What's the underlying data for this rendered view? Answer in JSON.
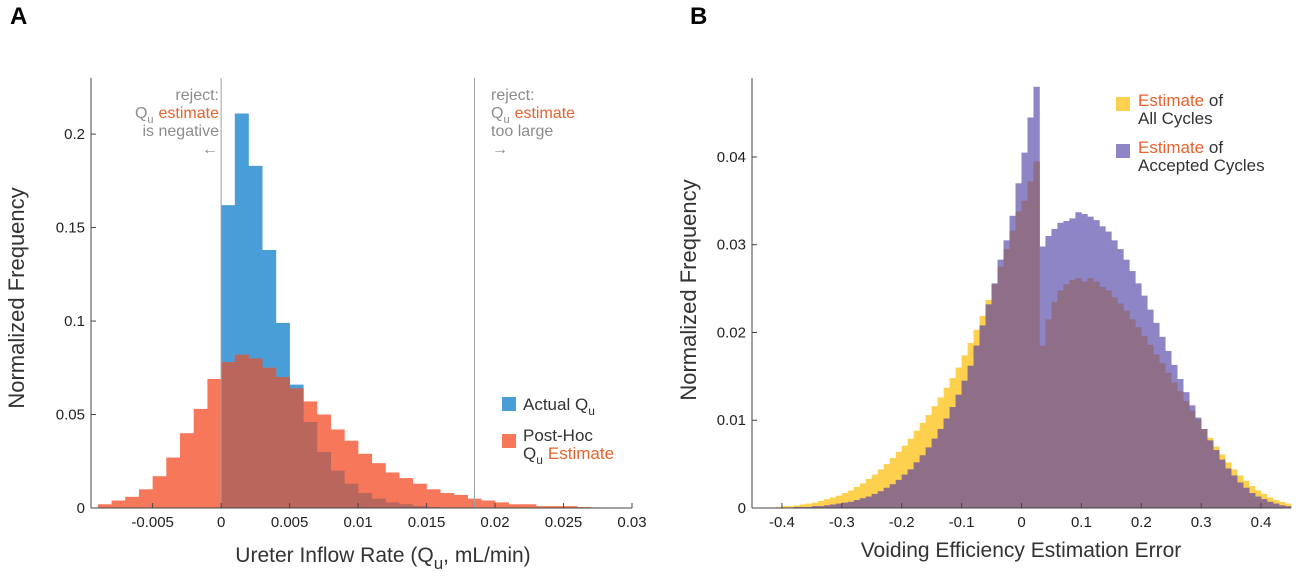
{
  "panels": [
    "A",
    "B"
  ],
  "colors": {
    "actual": "#4a9ed8",
    "posthoc": "#f7775a",
    "overlap": "#b9665c",
    "all_cycles": "#fdd04e",
    "accepted_cycles": "#8e85c6",
    "overlap_b": "#8f6f88",
    "accent_text": "#e6622f",
    "annotation_text": "#8c8c8c",
    "reject_line": "#a0a0a0"
  },
  "chart_data": [
    {
      "panel": "A",
      "type": "bar",
      "xlabel_main": "Ureter Inflow Rate (Q",
      "xlabel_sub": "u",
      "xlabel_tail": ", mL/min)",
      "ylabel": "Normalized Frequency",
      "xlim": [
        -0.0095,
        0.03
      ],
      "ylim": [
        0,
        0.23
      ],
      "xticks": [
        -0.005,
        0,
        0.005,
        0.01,
        0.015,
        0.02,
        0.025,
        0.03
      ],
      "xtick_labels": [
        "-0.005",
        "0",
        "0.005",
        "0.01",
        "0.015",
        "0.02",
        "0.025",
        "0.03"
      ],
      "yticks": [
        0,
        0.05,
        0.1,
        0.15,
        0.2
      ],
      "ytick_labels": [
        "0",
        "0.05",
        "0.1",
        "0.15",
        "0.2"
      ],
      "bin_width": 0.001,
      "series": [
        {
          "name": "Actual Q_u",
          "bin_starts": [
            0,
            0.001,
            0.002,
            0.003,
            0.004,
            0.005,
            0.006,
            0.007,
            0.008,
            0.009,
            0.01,
            0.011,
            0.012,
            0.013,
            0.014,
            0.015
          ],
          "values": [
            0.162,
            0.211,
            0.183,
            0.138,
            0.099,
            0.066,
            0.046,
            0.03,
            0.02,
            0.013,
            0.008,
            0.005,
            0.003,
            0.002,
            0.001,
            0.0005
          ]
        },
        {
          "name": "Post-Hoc Q_u Estimate",
          "bin_starts": [
            -0.009,
            -0.008,
            -0.007,
            -0.006,
            -0.005,
            -0.004,
            -0.003,
            -0.002,
            -0.001,
            0,
            0.001,
            0.002,
            0.003,
            0.004,
            0.005,
            0.006,
            0.007,
            0.008,
            0.009,
            0.01,
            0.011,
            0.012,
            0.013,
            0.014,
            0.015,
            0.016,
            0.017,
            0.018,
            0.019,
            0.02,
            0.021,
            0.022,
            0.023,
            0.024,
            0.025,
            0.026,
            0.027
          ],
          "values": [
            0.002,
            0.004,
            0.006,
            0.01,
            0.017,
            0.027,
            0.04,
            0.053,
            0.069,
            0.078,
            0.082,
            0.08,
            0.075,
            0.07,
            0.064,
            0.057,
            0.05,
            0.042,
            0.036,
            0.029,
            0.024,
            0.019,
            0.016,
            0.013,
            0.01,
            0.008,
            0.007,
            0.005,
            0.004,
            0.003,
            0.002,
            0.002,
            0.001,
            0.001,
            0.001,
            0.0005,
            0.0003
          ]
        }
      ],
      "reject_lines": [
        0,
        0.0185
      ],
      "annotations": {
        "left": {
          "line1": "reject:",
          "q": "Q",
          "q_sub": "u",
          "estimate": "estimate",
          "line3": "is negative",
          "arrow": "←"
        },
        "right": {
          "line1": "reject:",
          "q": "Q",
          "q_sub": "u",
          "estimate": "estimate",
          "line3": "too large",
          "arrow": "→"
        }
      },
      "legend": {
        "position": "lower-right",
        "actual_prefix": "Actual Q",
        "actual_sub": "u",
        "posthoc_line1": "Post-Hoc",
        "posthoc_q": "Q",
        "posthoc_sub": "u",
        "posthoc_estimate": "Estimate"
      }
    },
    {
      "panel": "B",
      "type": "bar",
      "xlabel": "Voiding Efficiency Estimation Error",
      "ylabel": "Normalized Frequency",
      "xlim": [
        -0.45,
        0.45
      ],
      "ylim": [
        0,
        0.049
      ],
      "xticks": [
        -0.4,
        -0.3,
        -0.2,
        -0.1,
        0,
        0.1,
        0.2,
        0.3,
        0.4
      ],
      "xtick_labels": [
        "-0.4",
        "-0.3",
        "-0.2",
        "-0.1",
        "0",
        "0.1",
        "0.2",
        "0.3",
        "0.4"
      ],
      "yticks": [
        0,
        0.01,
        0.02,
        0.03,
        0.04
      ],
      "ytick_labels": [
        "0",
        "0.01",
        "0.02",
        "0.03",
        "0.04"
      ],
      "bin_width": 0.01,
      "bin_start": -0.45,
      "series": [
        {
          "name": "Estimate of All Cycles",
          "values": [
            0,
            0,
            0,
            0,
            0.0001,
            0.0002,
            0.0002,
            0.0003,
            0.0004,
            0.0005,
            0.0006,
            0.0008,
            0.001,
            0.0012,
            0.0014,
            0.0017,
            0.002,
            0.0024,
            0.0028,
            0.0033,
            0.0038,
            0.0044,
            0.005,
            0.0057,
            0.0064,
            0.0071,
            0.0079,
            0.0088,
            0.0097,
            0.0106,
            0.0116,
            0.0126,
            0.0137,
            0.0148,
            0.016,
            0.0174,
            0.0188,
            0.0203,
            0.0219,
            0.0237,
            0.0255,
            0.0275,
            0.0295,
            0.0316,
            0.0338,
            0.035,
            0.0372,
            0.0395,
            0.0185,
            0.0215,
            0.0235,
            0.0248,
            0.0255,
            0.026,
            0.0262,
            0.0258,
            0.0262,
            0.0258,
            0.0252,
            0.0248,
            0.024,
            0.0233,
            0.0225,
            0.0215,
            0.0206,
            0.0196,
            0.0186,
            0.0175,
            0.0165,
            0.0154,
            0.0143,
            0.0133,
            0.0122,
            0.0111,
            0.0101,
            0.009,
            0.008,
            0.007,
            0.0061,
            0.0052,
            0.0044,
            0.0037,
            0.0031,
            0.0025,
            0.002,
            0.0016,
            0.0012,
            0.0009,
            0.0007,
            0.0005
          ]
        },
        {
          "name": "Estimate of Accepted Cycles",
          "values": [
            0,
            0,
            0,
            0,
            0,
            0,
            0,
            0.0001,
            0.0001,
            0.0001,
            0.0002,
            0.0002,
            0.0003,
            0.0004,
            0.0005,
            0.0006,
            0.0007,
            0.0009,
            0.0011,
            0.0013,
            0.0016,
            0.0019,
            0.0023,
            0.0027,
            0.0032,
            0.0038,
            0.0044,
            0.0052,
            0.006,
            0.0069,
            0.0079,
            0.009,
            0.0102,
            0.0115,
            0.0129,
            0.0145,
            0.0162,
            0.0185,
            0.0208,
            0.0232,
            0.0256,
            0.0283,
            0.0305,
            0.0333,
            0.037,
            0.0405,
            0.0445,
            0.048,
            0.0298,
            0.031,
            0.0318,
            0.0325,
            0.0327,
            0.033,
            0.0337,
            0.0335,
            0.0332,
            0.0328,
            0.0321,
            0.0315,
            0.0305,
            0.0295,
            0.0283,
            0.027,
            0.0256,
            0.0242,
            0.0226,
            0.0211,
            0.0195,
            0.0179,
            0.0163,
            0.0147,
            0.0132,
            0.0117,
            0.0103,
            0.009,
            0.0077,
            0.0066,
            0.0055,
            0.0045,
            0.0037,
            0.0029,
            0.0023,
            0.0017,
            0.0013,
            0.001,
            0.0007,
            0.0005,
            0.0003,
            0.0002
          ]
        }
      ],
      "legend": {
        "position": "top-right",
        "all_estimate": "Estimate",
        "all_of": " of",
        "all_line2": "All Cycles",
        "acc_estimate": "Estimate",
        "acc_of": " of",
        "acc_line2": "Accepted Cycles"
      }
    }
  ]
}
